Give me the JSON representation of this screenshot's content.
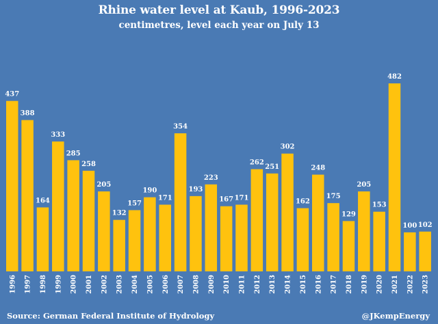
{
  "header": {
    "title": "Rhine water level at Kaub, 1996-2023",
    "subtitle": "centimetres, level each year on July 13"
  },
  "footer": {
    "source": "Source: German Federal Institute of Hydrology",
    "credit": "@JKempEnergy"
  },
  "colors": {
    "background": "#4a7ab4",
    "bar": "#ffc20e",
    "text": "#ffffff"
  },
  "chart_data": {
    "type": "bar",
    "title": "Rhine water level at Kaub, 1996-2023",
    "subtitle": "centimetres, level each year on July 13",
    "xlabel": "",
    "ylabel": "",
    "categories": [
      "1996",
      "1997",
      "1998",
      "1999",
      "2000",
      "2001",
      "2002",
      "2003",
      "2004",
      "2005",
      "2006",
      "2007",
      "2008",
      "2009",
      "2010",
      "2011",
      "2012",
      "2013",
      "2014",
      "2015",
      "2016",
      "2017",
      "2018",
      "2019",
      "2020",
      "2021",
      "2022",
      "2023"
    ],
    "values": [
      437,
      388,
      164,
      333,
      285,
      258,
      205,
      132,
      157,
      190,
      171,
      354,
      193,
      223,
      167,
      171,
      262,
      251,
      302,
      162,
      248,
      175,
      129,
      205,
      153,
      482,
      100,
      102
    ],
    "ylim": [
      0,
      482
    ],
    "grid": false,
    "legend": "none",
    "data_labels": true
  }
}
